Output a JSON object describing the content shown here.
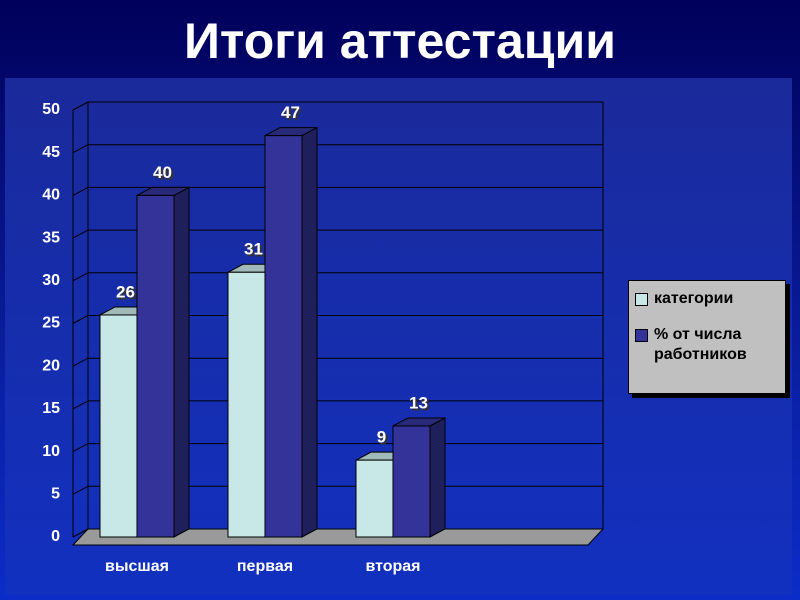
{
  "chart_data": {
    "type": "bar3d",
    "title": "Итоги аттестации",
    "categories": [
      "высшая",
      "первая",
      "вторая"
    ],
    "series": [
      {
        "name": "категории",
        "color": "#c8e8e8",
        "values": [
          26,
          31,
          9
        ]
      },
      {
        "name": "% от числа работников",
        "color": "#333399",
        "values": [
          40,
          47,
          13
        ]
      }
    ],
    "ylim": [
      0,
      50
    ],
    "yticks": [
      0,
      5,
      10,
      15,
      20,
      25,
      30,
      35,
      40,
      45,
      50
    ],
    "grid": true,
    "legend": "right"
  }
}
